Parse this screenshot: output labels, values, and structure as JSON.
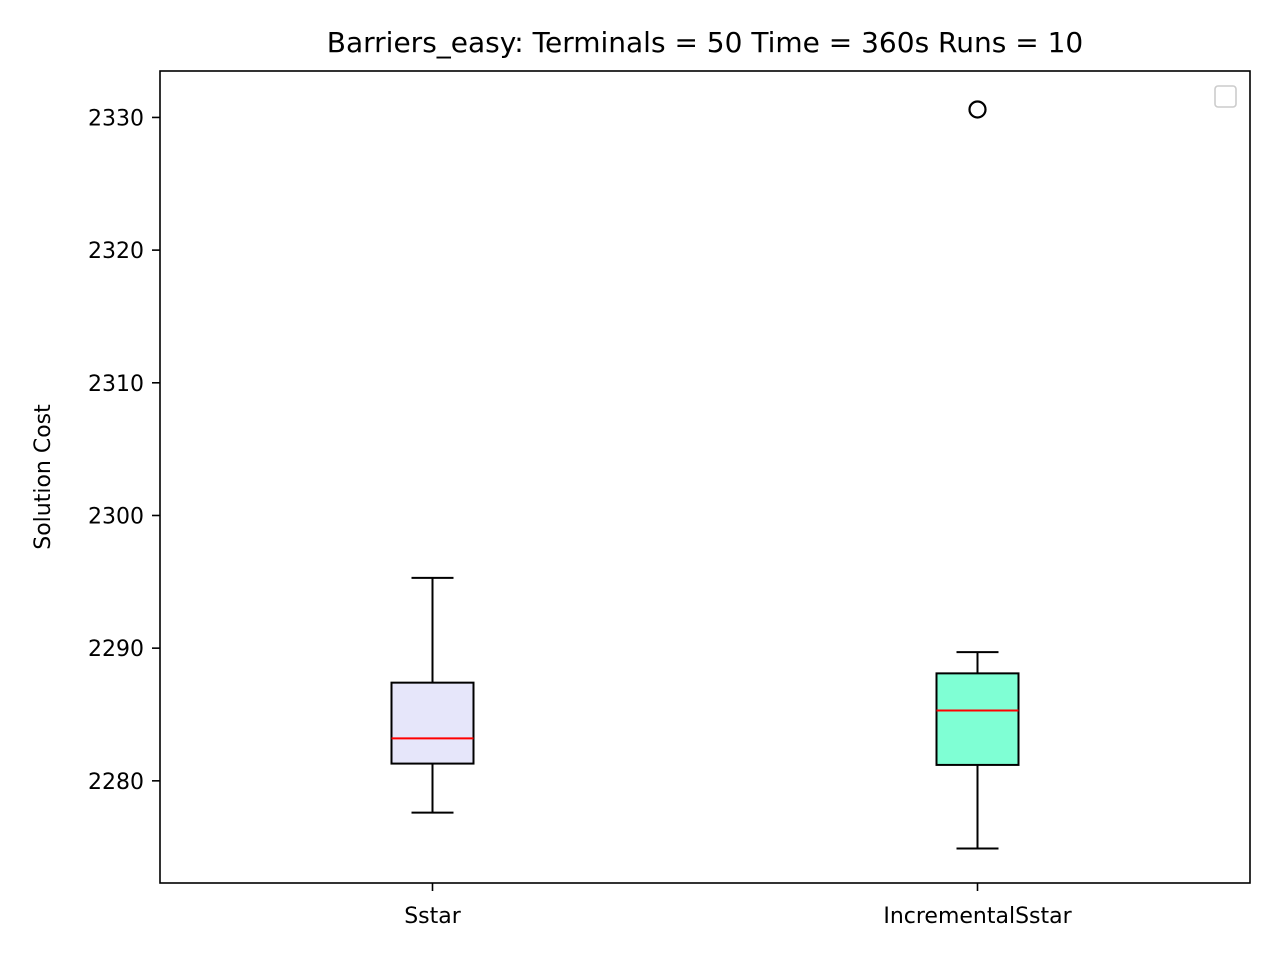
{
  "chart_data": {
    "type": "boxplot",
    "title": "Barriers_easy:  Terminals = 50  Time = 360s  Runs = 10",
    "xlabel": "",
    "ylabel": "Solution Cost",
    "categories": [
      "Sstar",
      "IncrementalSstar"
    ],
    "ylim": [
      2272.3,
      2333.5
    ],
    "yticks": [
      2280,
      2290,
      2300,
      2310,
      2320,
      2330
    ],
    "grid": false,
    "legend": {
      "placement": "upper right",
      "entries": []
    },
    "boxes": [
      {
        "category": "Sstar",
        "whisker_low": 2277.6,
        "q1": 2281.3,
        "median": 2283.2,
        "q3": 2287.4,
        "whisker_high": 2295.3,
        "outliers": [],
        "fill": "#e6e6fa"
      },
      {
        "category": "IncrementalSstar",
        "whisker_low": 2274.9,
        "q1": 2281.2,
        "median": 2285.3,
        "q3": 2288.1,
        "whisker_high": 2289.7,
        "outliers": [
          2330.6
        ],
        "fill": "#7fffd4"
      }
    ],
    "colors": {
      "median": "#ff0000",
      "outline": "#000000",
      "legend_border": "#cccccc"
    }
  }
}
